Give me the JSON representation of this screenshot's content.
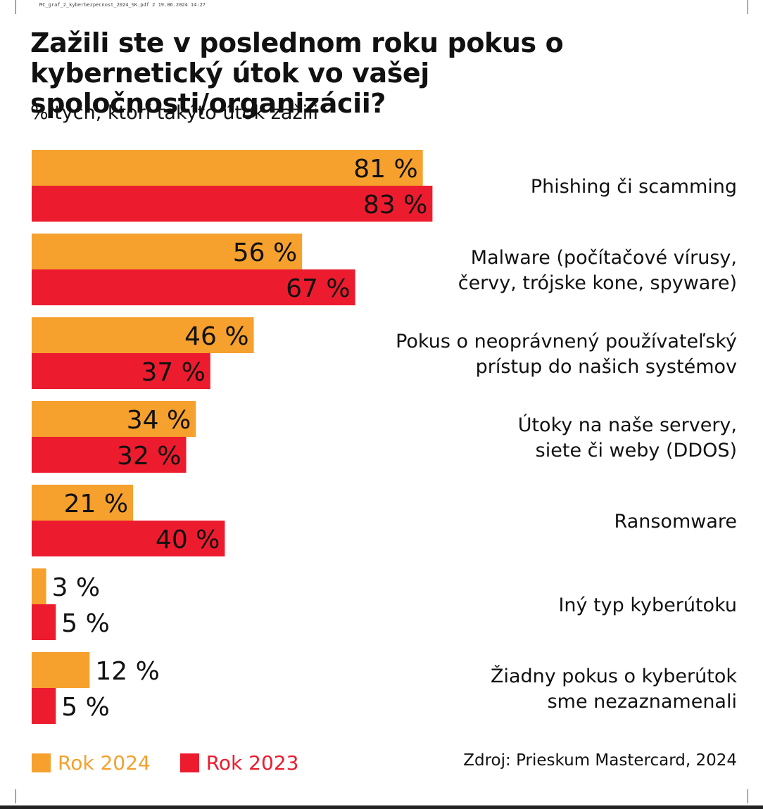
{
  "file_header": "MC_graf_2_kyberbezpecnost_2024_SK.pdf   2   19.06.2024   14:27",
  "chart_data": {
    "type": "bar",
    "orientation": "horizontal",
    "title": "Zažili ste v poslednom roku pokus o kybernetický útok vo vašej spoločnosti/organizácii?",
    "subtitle": "% tých, ktorí takýto útok zažili",
    "categories": [
      [
        "Phishing či scamming"
      ],
      [
        "Malware (počítačové vírusy,",
        "červy, trójske kone, spyware)"
      ],
      [
        "Pokus o neoprávnený používateľský",
        "prístup do našich systémov"
      ],
      [
        "Útoky na naše servery,",
        "siete či weby (DDOS)"
      ],
      [
        "Ransomware"
      ],
      [
        "Iný typ kyberútoku"
      ],
      [
        "Žiadny pokus o kyberútok",
        "sme nezaznamenali"
      ]
    ],
    "series": [
      {
        "name": "Rok 2024",
        "color": "#F6A02D",
        "values": [
          81,
          56,
          46,
          34,
          21,
          3,
          12
        ],
        "labels": [
          "81 %",
          "56 %",
          "46 %",
          "34 %",
          "21 %",
          "3 %",
          "12 %"
        ]
      },
      {
        "name": "Rok 2023",
        "color": "#EC1C2E",
        "values": [
          83,
          67,
          37,
          32,
          40,
          5,
          5
        ],
        "labels": [
          "83 %",
          "67 %",
          "37 %",
          "32 %",
          "40 %",
          "5 %",
          "5 %"
        ]
      }
    ],
    "xlim": [
      0,
      100
    ],
    "legend_position": "bottom-left",
    "source": "Zdroj: Prieskum Mastercard, 2024"
  }
}
